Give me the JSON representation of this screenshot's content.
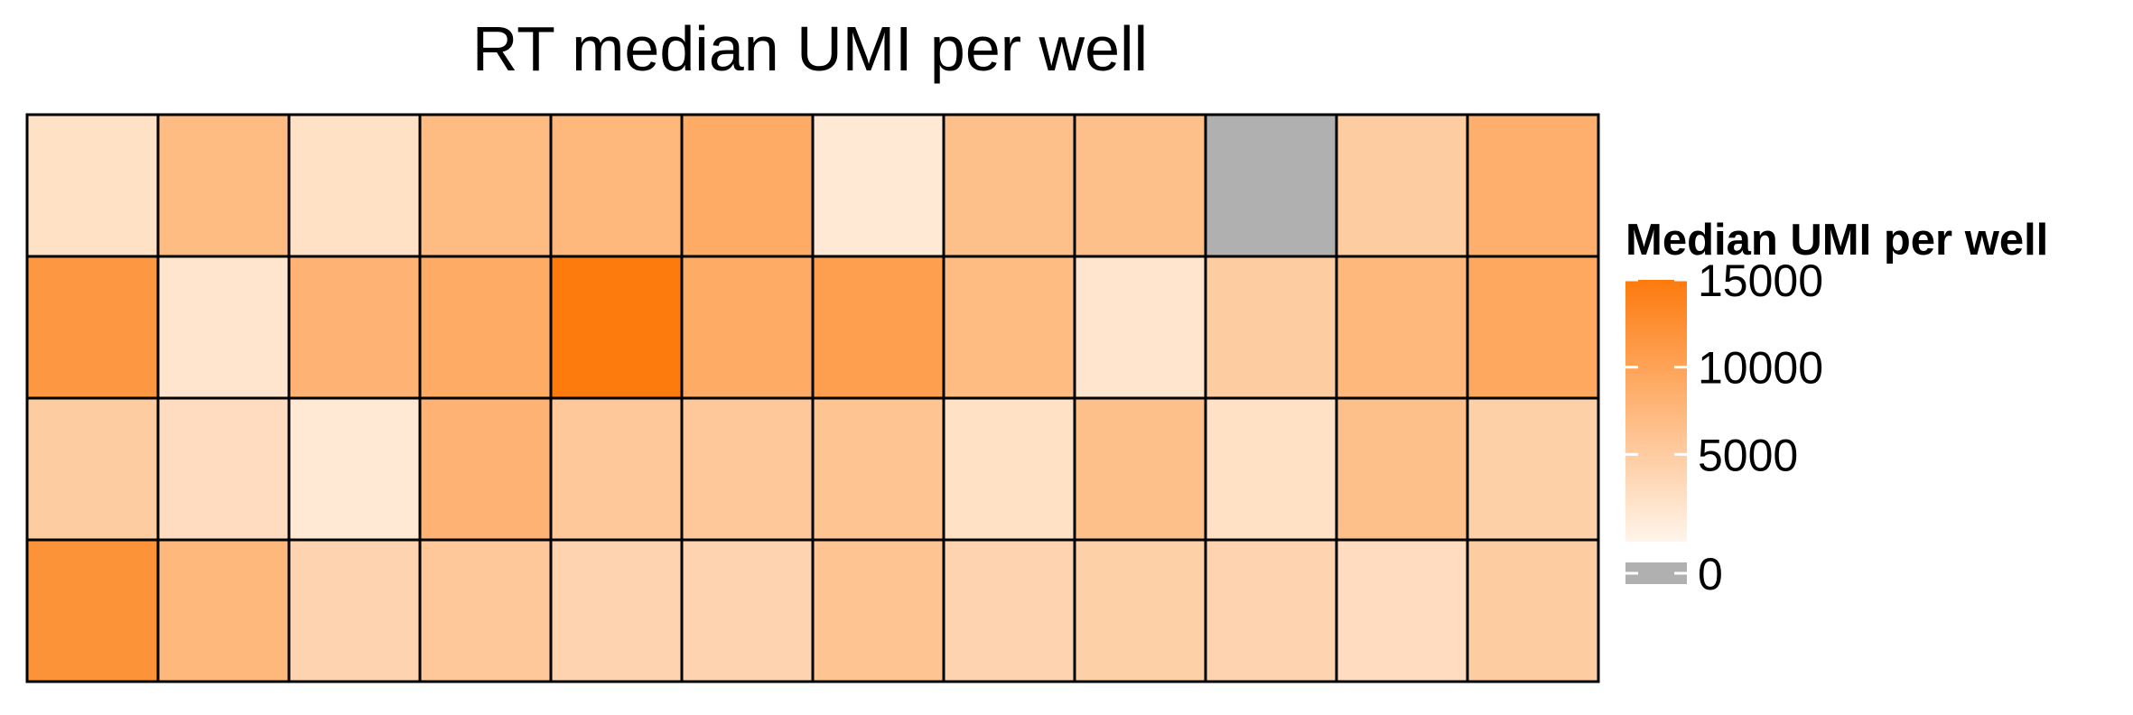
{
  "chart_data": {
    "type": "heatmap",
    "title": "RT median UMI per well",
    "rows": 4,
    "cols": 12,
    "values": [
      [
        2500,
        7000,
        2500,
        7000,
        7500,
        9000,
        1500,
        6500,
        6500,
        0,
        5000,
        8500
      ],
      [
        11500,
        2000,
        8000,
        9000,
        15000,
        9000,
        10500,
        7000,
        2000,
        5000,
        7500,
        9500
      ],
      [
        5000,
        3000,
        1500,
        8000,
        5500,
        5500,
        6000,
        2500,
        6500,
        2500,
        6500,
        4500
      ],
      [
        12000,
        7500,
        4000,
        5500,
        4000,
        4000,
        6000,
        4000,
        4500,
        4000,
        3000,
        5000
      ]
    ],
    "legend": {
      "title": "Median UMI per well",
      "ticks": [
        "0",
        "5000",
        "10000",
        "15000"
      ],
      "tick_values": [
        0,
        5000,
        10000,
        15000
      ],
      "range": [
        0,
        15000
      ],
      "placement": "right"
    },
    "colors": {
      "low": "#fff5eb",
      "high": "#fd7a0d",
      "na": "#b0b0b0",
      "border": "#000000"
    },
    "zero_is_na": true
  }
}
